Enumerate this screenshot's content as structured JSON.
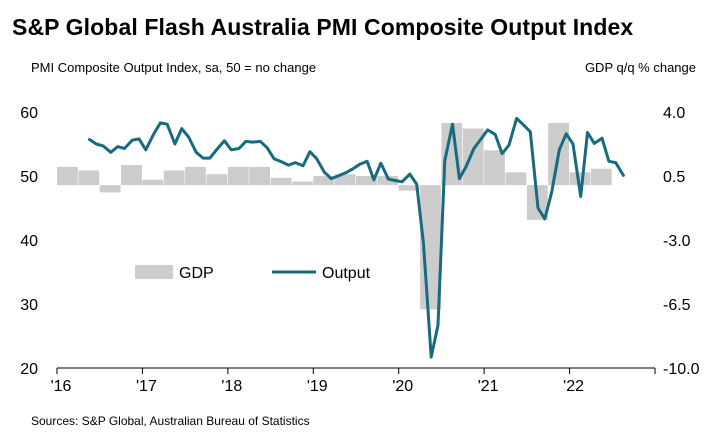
{
  "title": "S&P Global Flash Australia PMI Composite Output Index",
  "left_subtitle": "PMI Composite Output Index, sa, 50 = no change",
  "right_subtitle": "GDP q/q % change",
  "source": "Sources: S&P Global, Australian Bureau of Statistics",
  "colors": {
    "gdp": "#cccccc",
    "output": "#176b7e",
    "axis": "#000000"
  },
  "chart_data": {
    "type": "bar+line",
    "title": "S&P Global Flash Australia PMI Composite Output Index",
    "left_axis": {
      "label": "PMI Composite Output Index, sa, 50 = no change",
      "range": [
        20,
        60
      ],
      "ticks": [
        "60",
        "50",
        "40",
        "30",
        "20"
      ],
      "tick_values": [
        60,
        50,
        40,
        30,
        20
      ]
    },
    "right_axis": {
      "label": "GDP q/q % change",
      "range": [
        -10.0,
        4.0
      ],
      "ticks": [
        "4.0",
        "0.5",
        "-3.0",
        "-6.5",
        "-10.0"
      ],
      "tick_values": [
        4.0,
        0.5,
        -3.0,
        -6.5,
        -10.0
      ]
    },
    "x_axis": {
      "range": [
        2016.0,
        2023.0
      ],
      "ticks": [
        "'16",
        "'17",
        "'18",
        "'19",
        "'20",
        "'21",
        "'22"
      ],
      "tick_values": [
        2016,
        2017,
        2018,
        2019,
        2020,
        2021,
        2022
      ]
    },
    "legend": [
      "GDP",
      "Output"
    ],
    "gdp": {
      "name": "GDP",
      "x": [
        2016.0,
        2016.25,
        2016.5,
        2016.75,
        2017.0,
        2017.25,
        2017.5,
        2017.75,
        2018.0,
        2018.25,
        2018.5,
        2018.75,
        2019.0,
        2019.25,
        2019.5,
        2019.75,
        2020.0,
        2020.25,
        2020.5,
        2020.75,
        2021.0,
        2021.25,
        2021.5,
        2021.75,
        2022.0,
        2022.25
      ],
      "values": [
        1.0,
        0.8,
        -0.4,
        1.1,
        0.3,
        0.8,
        1.0,
        0.6,
        1.0,
        1.0,
        0.4,
        0.2,
        0.5,
        0.6,
        0.5,
        0.5,
        -0.3,
        -6.8,
        3.4,
        3.1,
        1.9,
        0.7,
        -1.9,
        3.4,
        0.7,
        0.9
      ]
    },
    "output": {
      "name": "Output",
      "x": [
        2016.38,
        2016.46,
        2016.54,
        2016.63,
        2016.71,
        2016.79,
        2016.88,
        2016.96,
        2017.04,
        2017.13,
        2017.21,
        2017.29,
        2017.38,
        2017.46,
        2017.54,
        2017.63,
        2017.71,
        2017.79,
        2017.88,
        2017.96,
        2018.04,
        2018.13,
        2018.21,
        2018.29,
        2018.38,
        2018.46,
        2018.54,
        2018.63,
        2018.71,
        2018.79,
        2018.88,
        2018.96,
        2019.04,
        2019.13,
        2019.21,
        2019.29,
        2019.38,
        2019.46,
        2019.54,
        2019.63,
        2019.71,
        2019.79,
        2019.88,
        2019.96,
        2020.04,
        2020.13,
        2020.21,
        2020.29,
        2020.38,
        2020.46,
        2020.54,
        2020.63,
        2020.71,
        2020.79,
        2020.88,
        2020.96,
        2021.04,
        2021.13,
        2021.21,
        2021.29,
        2021.38,
        2021.46,
        2021.54,
        2021.63,
        2021.71,
        2021.79,
        2021.88,
        2021.96,
        2022.04,
        2022.13,
        2022.21,
        2022.29,
        2022.38,
        2022.46,
        2022.54,
        2022.63
      ],
      "values": [
        55.7,
        55.0,
        54.7,
        53.7,
        54.6,
        54.3,
        55.6,
        55.8,
        54.1,
        56.5,
        58.3,
        58.1,
        55.0,
        57.4,
        56.1,
        53.7,
        52.8,
        52.8,
        54.3,
        55.5,
        54.1,
        54.3,
        55.4,
        55.3,
        55.4,
        54.4,
        52.7,
        52.2,
        51.7,
        52.1,
        51.6,
        53.8,
        52.7,
        50.6,
        49.6,
        50.0,
        50.5,
        51.1,
        51.8,
        52.3,
        49.4,
        52.0,
        49.5,
        49.3,
        49.1,
        50.3,
        48.7,
        39.4,
        21.7,
        26.7,
        52.4,
        58.1,
        49.6,
        51.5,
        54.3,
        55.7,
        57.2,
        56.5,
        53.5,
        54.8,
        59.0,
        58.0,
        56.9,
        45.0,
        43.3,
        47.4,
        54.1,
        56.6,
        55.0,
        46.8,
        56.8,
        55.1,
        55.9,
        52.3,
        52.1,
        50.1
      ]
    }
  }
}
